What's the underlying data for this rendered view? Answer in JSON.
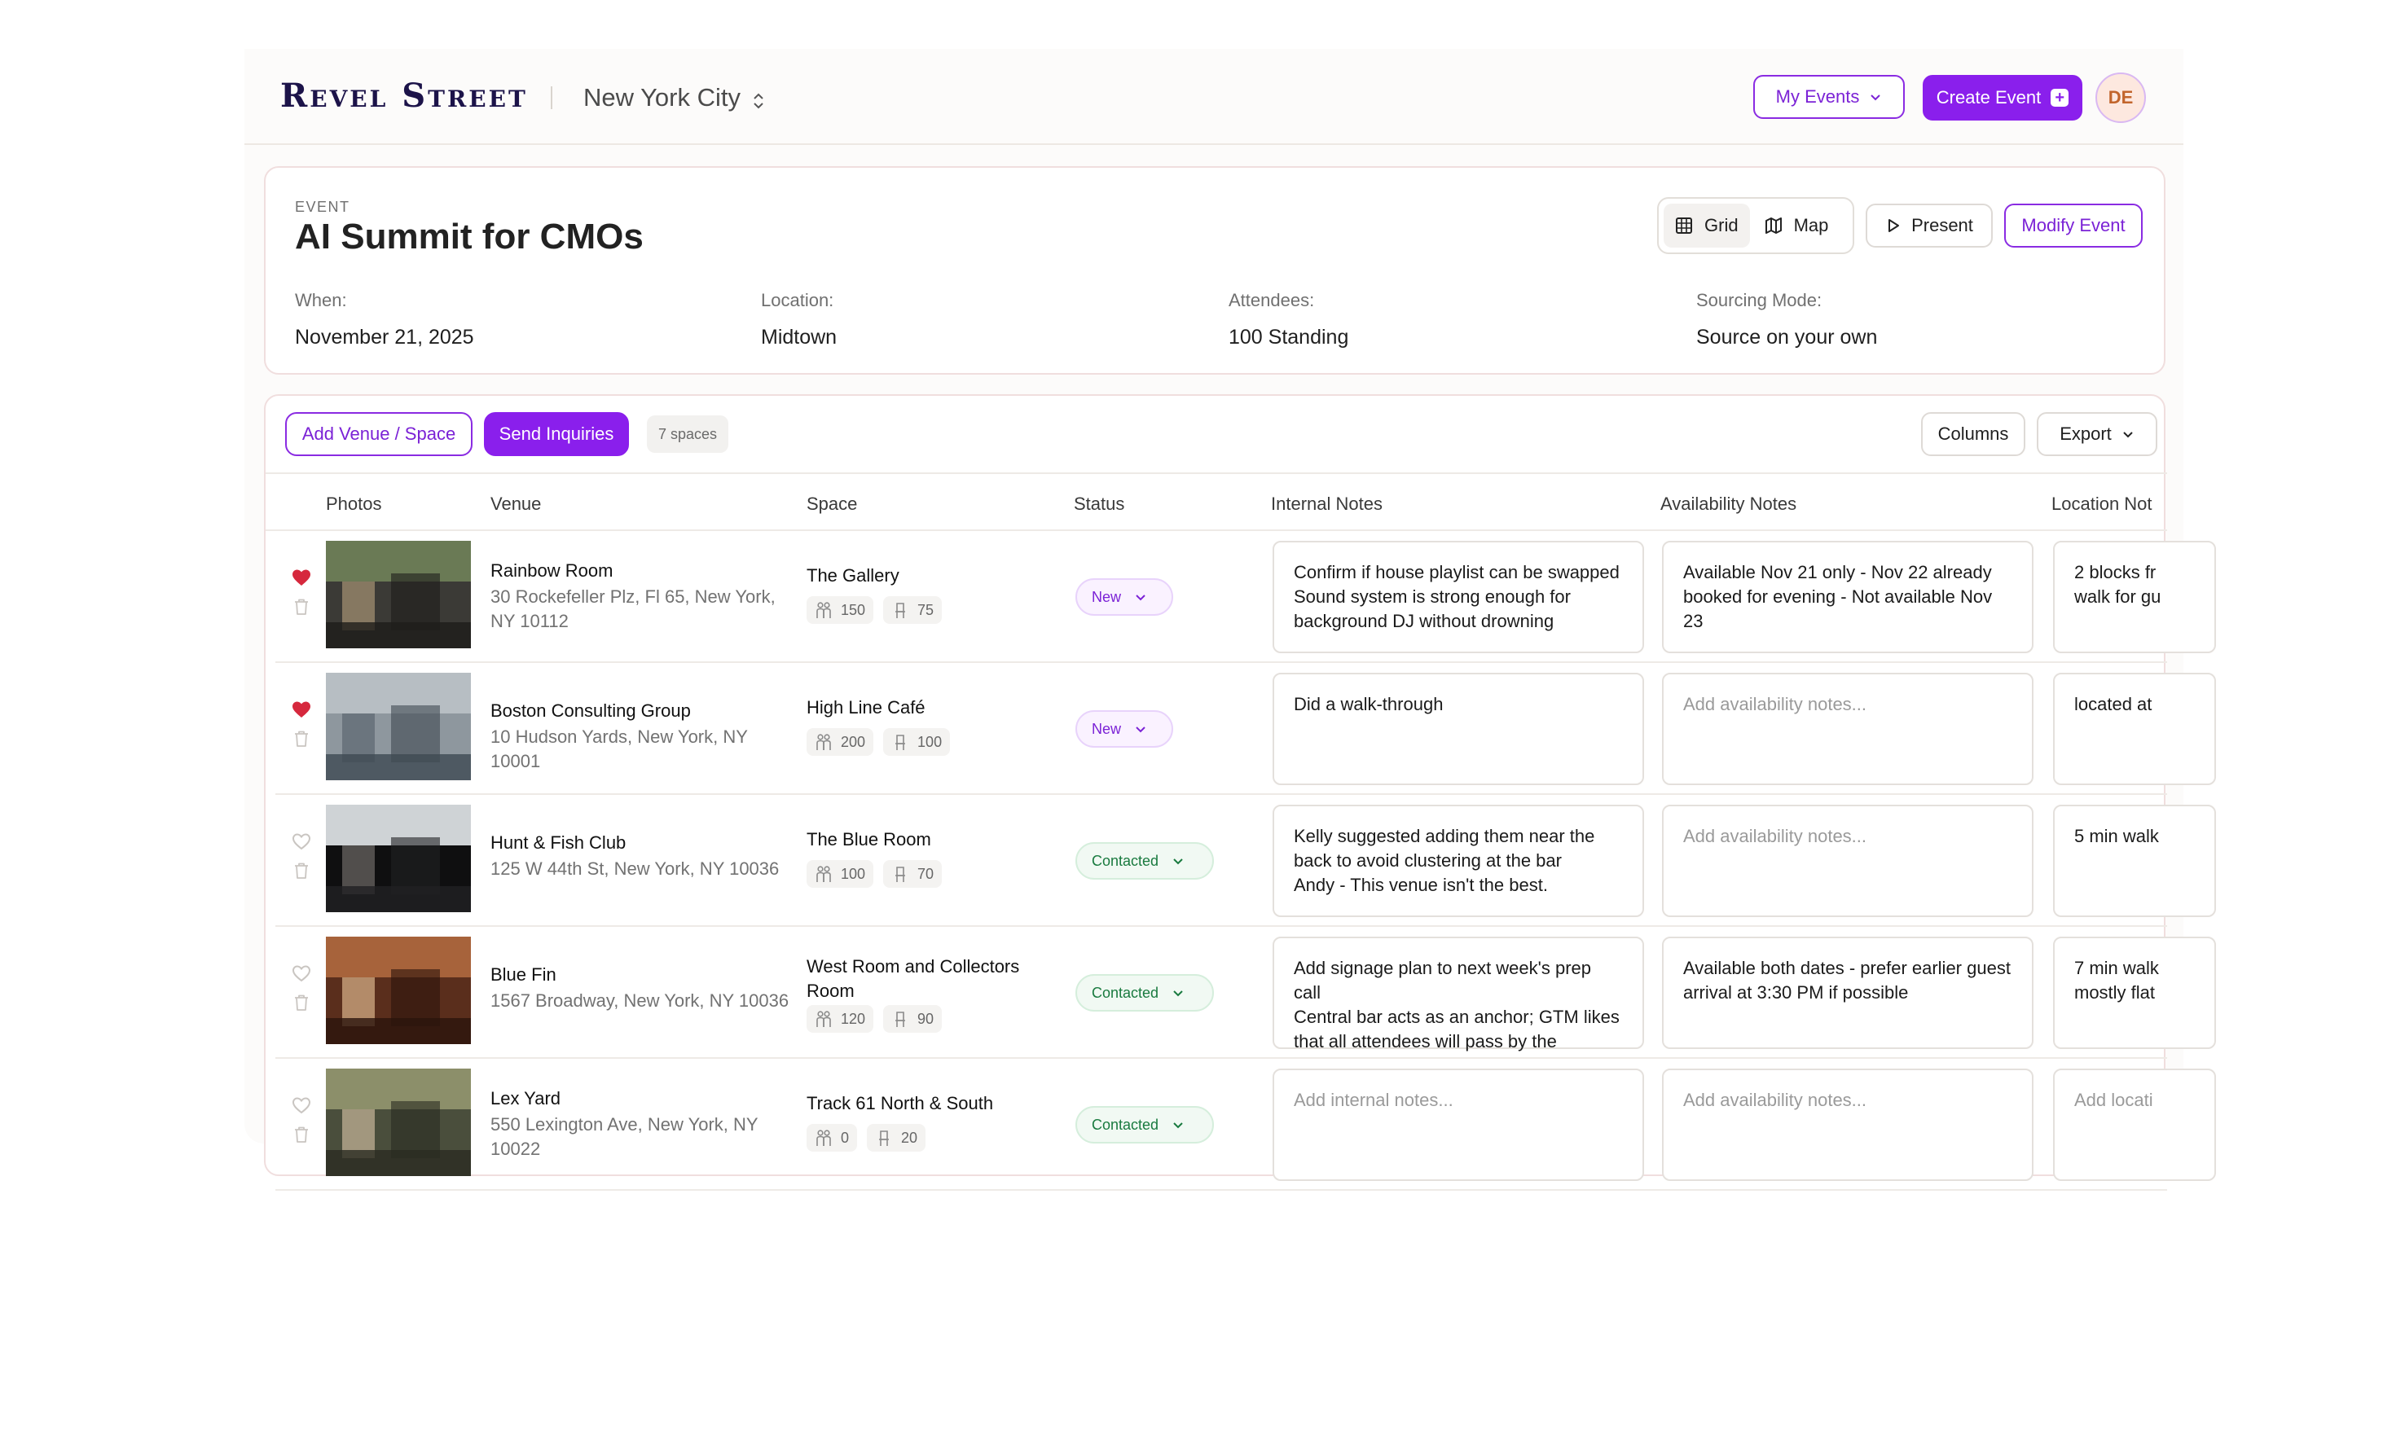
{
  "app": {
    "logo": "Revel Street",
    "city": "New York City",
    "my_events_label": "My Events",
    "create_event_label": "Create Event",
    "avatar_initials": "DE",
    "accent_color": "#8a1fec"
  },
  "event": {
    "kicker": "EVENT",
    "title": "AI Summit for CMOs",
    "views": {
      "grid": "Grid",
      "map": "Map",
      "active": "grid"
    },
    "present_label": "Present",
    "modify_label": "Modify Event",
    "meta": [
      {
        "label": "When:",
        "value": "November 21, 2025"
      },
      {
        "label": "Location:",
        "value": "Midtown"
      },
      {
        "label": "Attendees:",
        "value": "100 Standing"
      },
      {
        "label": "Sourcing Mode:",
        "value": "Source on your own"
      }
    ]
  },
  "toolbar": {
    "add_venue_label": "Add Venue / Space",
    "send_inquiries_label": "Send Inquiries",
    "spaces_count": "7 spaces",
    "columns_label": "Columns",
    "export_label": "Export"
  },
  "table": {
    "headers": [
      "Photos",
      "Venue",
      "Space",
      "Status",
      "Internal Notes",
      "Availability Notes",
      "Location Not"
    ],
    "rows": [
      {
        "favorited": true,
        "venue": "Rainbow Room",
        "address": "30 Rockefeller Plz, Fl 65, New York, NY 10112",
        "space": "The Gallery",
        "standing": "150",
        "seated": "75",
        "status": "New",
        "internal_notes": "Confirm if house playlist can be swapped\nSound system is strong enough for background DJ without drowning",
        "availability_notes": "Available Nov 21 only - Nov 22 already booked for evening - Not available Nov 23",
        "location_notes": "2 blocks fr walk for gu"
      },
      {
        "favorited": true,
        "venue": "Boston Consulting Group",
        "address": "10 Hudson Yards, New York, NY 10001",
        "space": "High Line Café",
        "standing": "200",
        "seated": "100",
        "status": "New",
        "internal_notes": "Did a walk-through",
        "availability_notes": "",
        "location_notes": "located at"
      },
      {
        "favorited": false,
        "venue": "Hunt & Fish Club",
        "address": "125 W 44th St, New York, NY 10036",
        "space": "The Blue Room",
        "standing": "100",
        "seated": "70",
        "status": "Contacted",
        "internal_notes": "Kelly suggested adding them near the back to avoid clustering at the bar\nAndy - This venue isn't the best.",
        "availability_notes": "",
        "location_notes": "5 min walk"
      },
      {
        "favorited": false,
        "venue": "Blue Fin",
        "address": "1567 Broadway, New York, NY 10036",
        "space": "West Room and Collectors Room",
        "standing": "120",
        "seated": "90",
        "status": "Contacted",
        "internal_notes": "Add signage plan to next week's prep call\nCentral bar acts as an anchor; GTM likes that all attendees will pass by the",
        "availability_notes": "Available both dates - prefer earlier guest arrival at 3:30 PM if possible",
        "location_notes": "7 min walk mostly flat"
      },
      {
        "favorited": false,
        "venue": "Lex Yard",
        "address": "550 Lexington Ave, New York, NY 10022",
        "space": "Track 61 North & South",
        "standing": "0",
        "seated": "20",
        "status": "Contacted",
        "internal_notes": "",
        "availability_notes": "",
        "location_notes": ""
      }
    ],
    "placeholders": {
      "internal": "Add internal notes...",
      "availability": "Add availability notes...",
      "location": "Add locati"
    }
  }
}
